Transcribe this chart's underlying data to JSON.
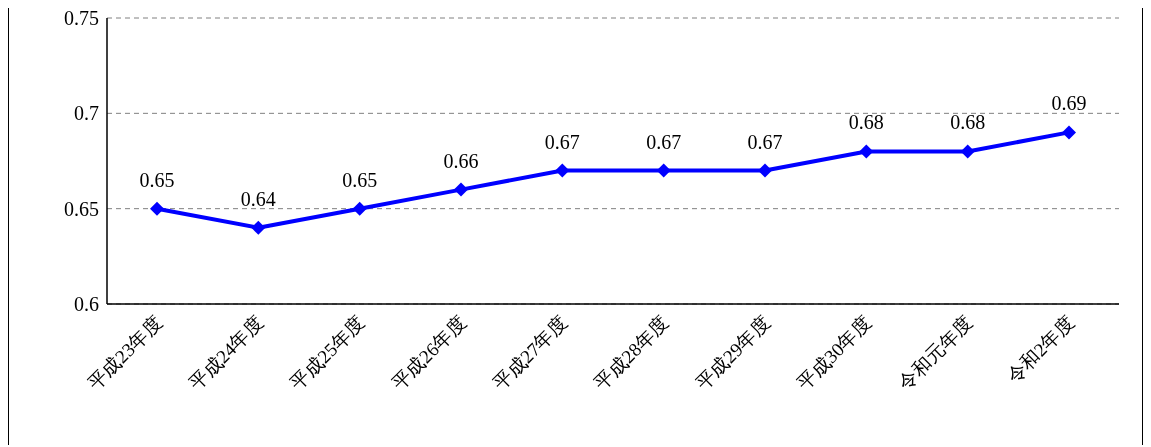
{
  "chart_data": {
    "type": "line",
    "categories": [
      "平成23年度",
      "平成24年度",
      "平成25年度",
      "平成26年度",
      "平成27年度",
      "平成28年度",
      "平成29年度",
      "平成30年度",
      "令和元年度",
      "令和2年度"
    ],
    "series": [
      {
        "color": "#0000ff",
        "values": [
          0.65,
          0.64,
          0.65,
          0.66,
          0.67,
          0.67,
          0.67,
          0.68,
          0.68,
          0.69
        ]
      }
    ],
    "ylim": [
      0.6,
      0.75
    ],
    "yticks": [
      0.6,
      0.65,
      0.7,
      0.75
    ],
    "grid": "y",
    "legend": false,
    "marker": "diamond",
    "line_style": "solid",
    "data_labels": true
  }
}
